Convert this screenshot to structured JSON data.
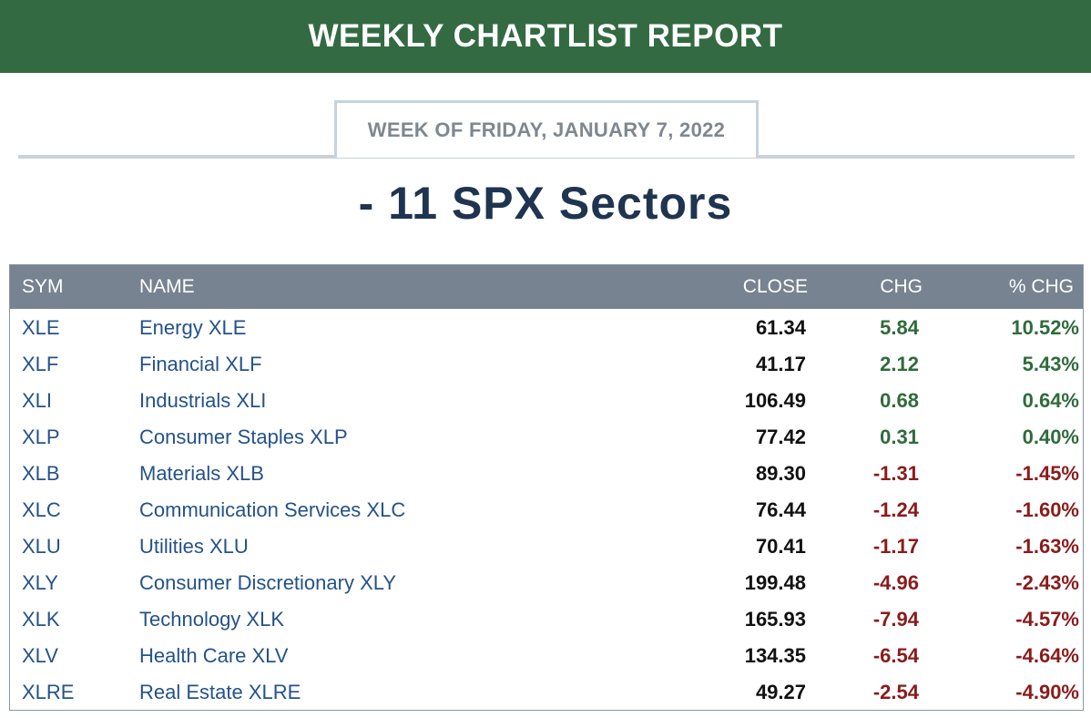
{
  "header": {
    "title": "WEEKLY CHARTLIST REPORT",
    "week_label": "WEEK OF FRIDAY, JANUARY 7, 2022",
    "section_title": "- 11 SPX Sectors"
  },
  "colors": {
    "banner": "#336a42",
    "table_header": "#778391",
    "positive": "#2f6b3b",
    "negative": "#8b1b1b",
    "link": "#24528a"
  },
  "table": {
    "columns": [
      "SYM",
      "NAME",
      "CLOSE",
      "CHG",
      "% CHG"
    ],
    "rows": [
      {
        "sym": "XLE",
        "name": "Energy XLE",
        "close": "61.34",
        "chg": "5.84",
        "pct": "10.52%",
        "dir": "pos"
      },
      {
        "sym": "XLF",
        "name": "Financial XLF",
        "close": "41.17",
        "chg": "2.12",
        "pct": "5.43%",
        "dir": "pos"
      },
      {
        "sym": "XLI",
        "name": "Industrials XLI",
        "close": "106.49",
        "chg": "0.68",
        "pct": "0.64%",
        "dir": "pos"
      },
      {
        "sym": "XLP",
        "name": "Consumer Staples XLP",
        "close": "77.42",
        "chg": "0.31",
        "pct": "0.40%",
        "dir": "pos"
      },
      {
        "sym": "XLB",
        "name": "Materials XLB",
        "close": "89.30",
        "chg": "-1.31",
        "pct": "-1.45%",
        "dir": "neg"
      },
      {
        "sym": "XLC",
        "name": "Communication Services XLC",
        "close": "76.44",
        "chg": "-1.24",
        "pct": "-1.60%",
        "dir": "neg"
      },
      {
        "sym": "XLU",
        "name": "Utilities XLU",
        "close": "70.41",
        "chg": "-1.17",
        "pct": "-1.63%",
        "dir": "neg"
      },
      {
        "sym": "XLY",
        "name": "Consumer Discretionary XLY",
        "close": "199.48",
        "chg": "-4.96",
        "pct": "-2.43%",
        "dir": "neg"
      },
      {
        "sym": "XLK",
        "name": "Technology XLK",
        "close": "165.93",
        "chg": "-7.94",
        "pct": "-4.57%",
        "dir": "neg"
      },
      {
        "sym": "XLV",
        "name": "Health Care XLV",
        "close": "134.35",
        "chg": "-6.54",
        "pct": "-4.64%",
        "dir": "neg"
      },
      {
        "sym": "XLRE",
        "name": "Real Estate XLRE",
        "close": "49.27",
        "chg": "-2.54",
        "pct": "-4.90%",
        "dir": "neg"
      }
    ]
  }
}
